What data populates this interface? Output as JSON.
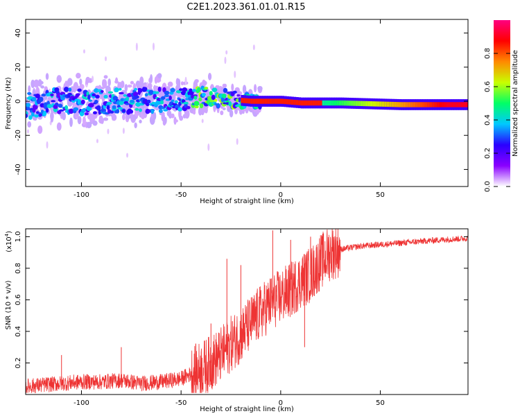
{
  "title": "C2E1.2023.361.01.01.R15",
  "chart_data": [
    {
      "type": "heatmap",
      "xlabel": "Height of straight line (km)",
      "ylabel": "Frequency (Hz)",
      "xlim": [
        -128,
        94
      ],
      "ylim": [
        -50,
        48
      ],
      "xticks": [
        -100,
        -50,
        0,
        50
      ],
      "yticks": [
        -40,
        -20,
        0,
        20,
        40
      ],
      "colorbar": {
        "label": "Normalized spectral amplitude",
        "range": [
          0,
          1
        ],
        "ticks": [
          "0.0",
          "0.2",
          "0.4",
          "0.6",
          "0.8"
        ],
        "colormap": [
          "#ffffff",
          "#8a00ff",
          "#2a00ff",
          "#00c8ff",
          "#00ff66",
          "#c8ff00",
          "#ff8a00",
          "#ff0000",
          "#ff0080"
        ]
      },
      "ridge": [
        {
          "x": -128,
          "y": -3
        },
        {
          "x": -110,
          "y": 1
        },
        {
          "x": -95,
          "y": -1
        },
        {
          "x": -80,
          "y": 0
        },
        {
          "x": -65,
          "y": 0
        },
        {
          "x": -50,
          "y": 1
        },
        {
          "x": -35,
          "y": 3
        },
        {
          "x": -25,
          "y": 1
        },
        {
          "x": -15,
          "y": 0
        },
        {
          "x": 0,
          "y": 0
        },
        {
          "x": 10,
          "y": -1
        },
        {
          "x": 30,
          "y": -1
        },
        {
          "x": 60,
          "y": -2
        },
        {
          "x": 94,
          "y": -2
        }
      ]
    },
    {
      "type": "line",
      "xlabel": "Height of straight line (km)",
      "ylabel": "SNR (10 * v/v)",
      "y_multiplier": "(x10",
      "y_multiplier_exp": "4",
      "y_multiplier_close": ")",
      "xlim": [
        -128,
        94
      ],
      "ylim": [
        0,
        1.05
      ],
      "xticks": [
        -100,
        -50,
        0,
        50
      ],
      "yticks": [
        0.2,
        0.4,
        0.6,
        0.8,
        1.0
      ],
      "color": "#ee3333",
      "series": [
        {
          "x": [
            -128,
            -120,
            -110,
            -100,
            -90,
            -80,
            -70,
            -60,
            -50,
            -45,
            -40,
            -35,
            -30,
            -25,
            -20,
            -15,
            -10,
            -5,
            0,
            5,
            10,
            15,
            20,
            25,
            30,
            40,
            50,
            60,
            70,
            80,
            94
          ],
          "y": [
            0.05,
            0.06,
            0.07,
            0.08,
            0.08,
            0.09,
            0.07,
            0.08,
            0.1,
            0.13,
            0.16,
            0.2,
            0.25,
            0.32,
            0.38,
            0.45,
            0.52,
            0.58,
            0.62,
            0.66,
            0.72,
            0.76,
            0.84,
            0.9,
            0.92,
            0.94,
            0.95,
            0.96,
            0.97,
            0.98,
            0.99
          ]
        }
      ],
      "spikes": [
        {
          "x": -110,
          "y": 0.25
        },
        {
          "x": -80,
          "y": 0.3
        },
        {
          "x": -35,
          "y": 0.45
        },
        {
          "x": -27,
          "y": 0.86
        },
        {
          "x": -20,
          "y": 0.82
        },
        {
          "x": -4,
          "y": 1.04
        },
        {
          "x": 5,
          "y": 0.98
        },
        {
          "x": 15,
          "y": 1.0
        },
        {
          "x": 12,
          "y": 0.3
        }
      ]
    }
  ]
}
